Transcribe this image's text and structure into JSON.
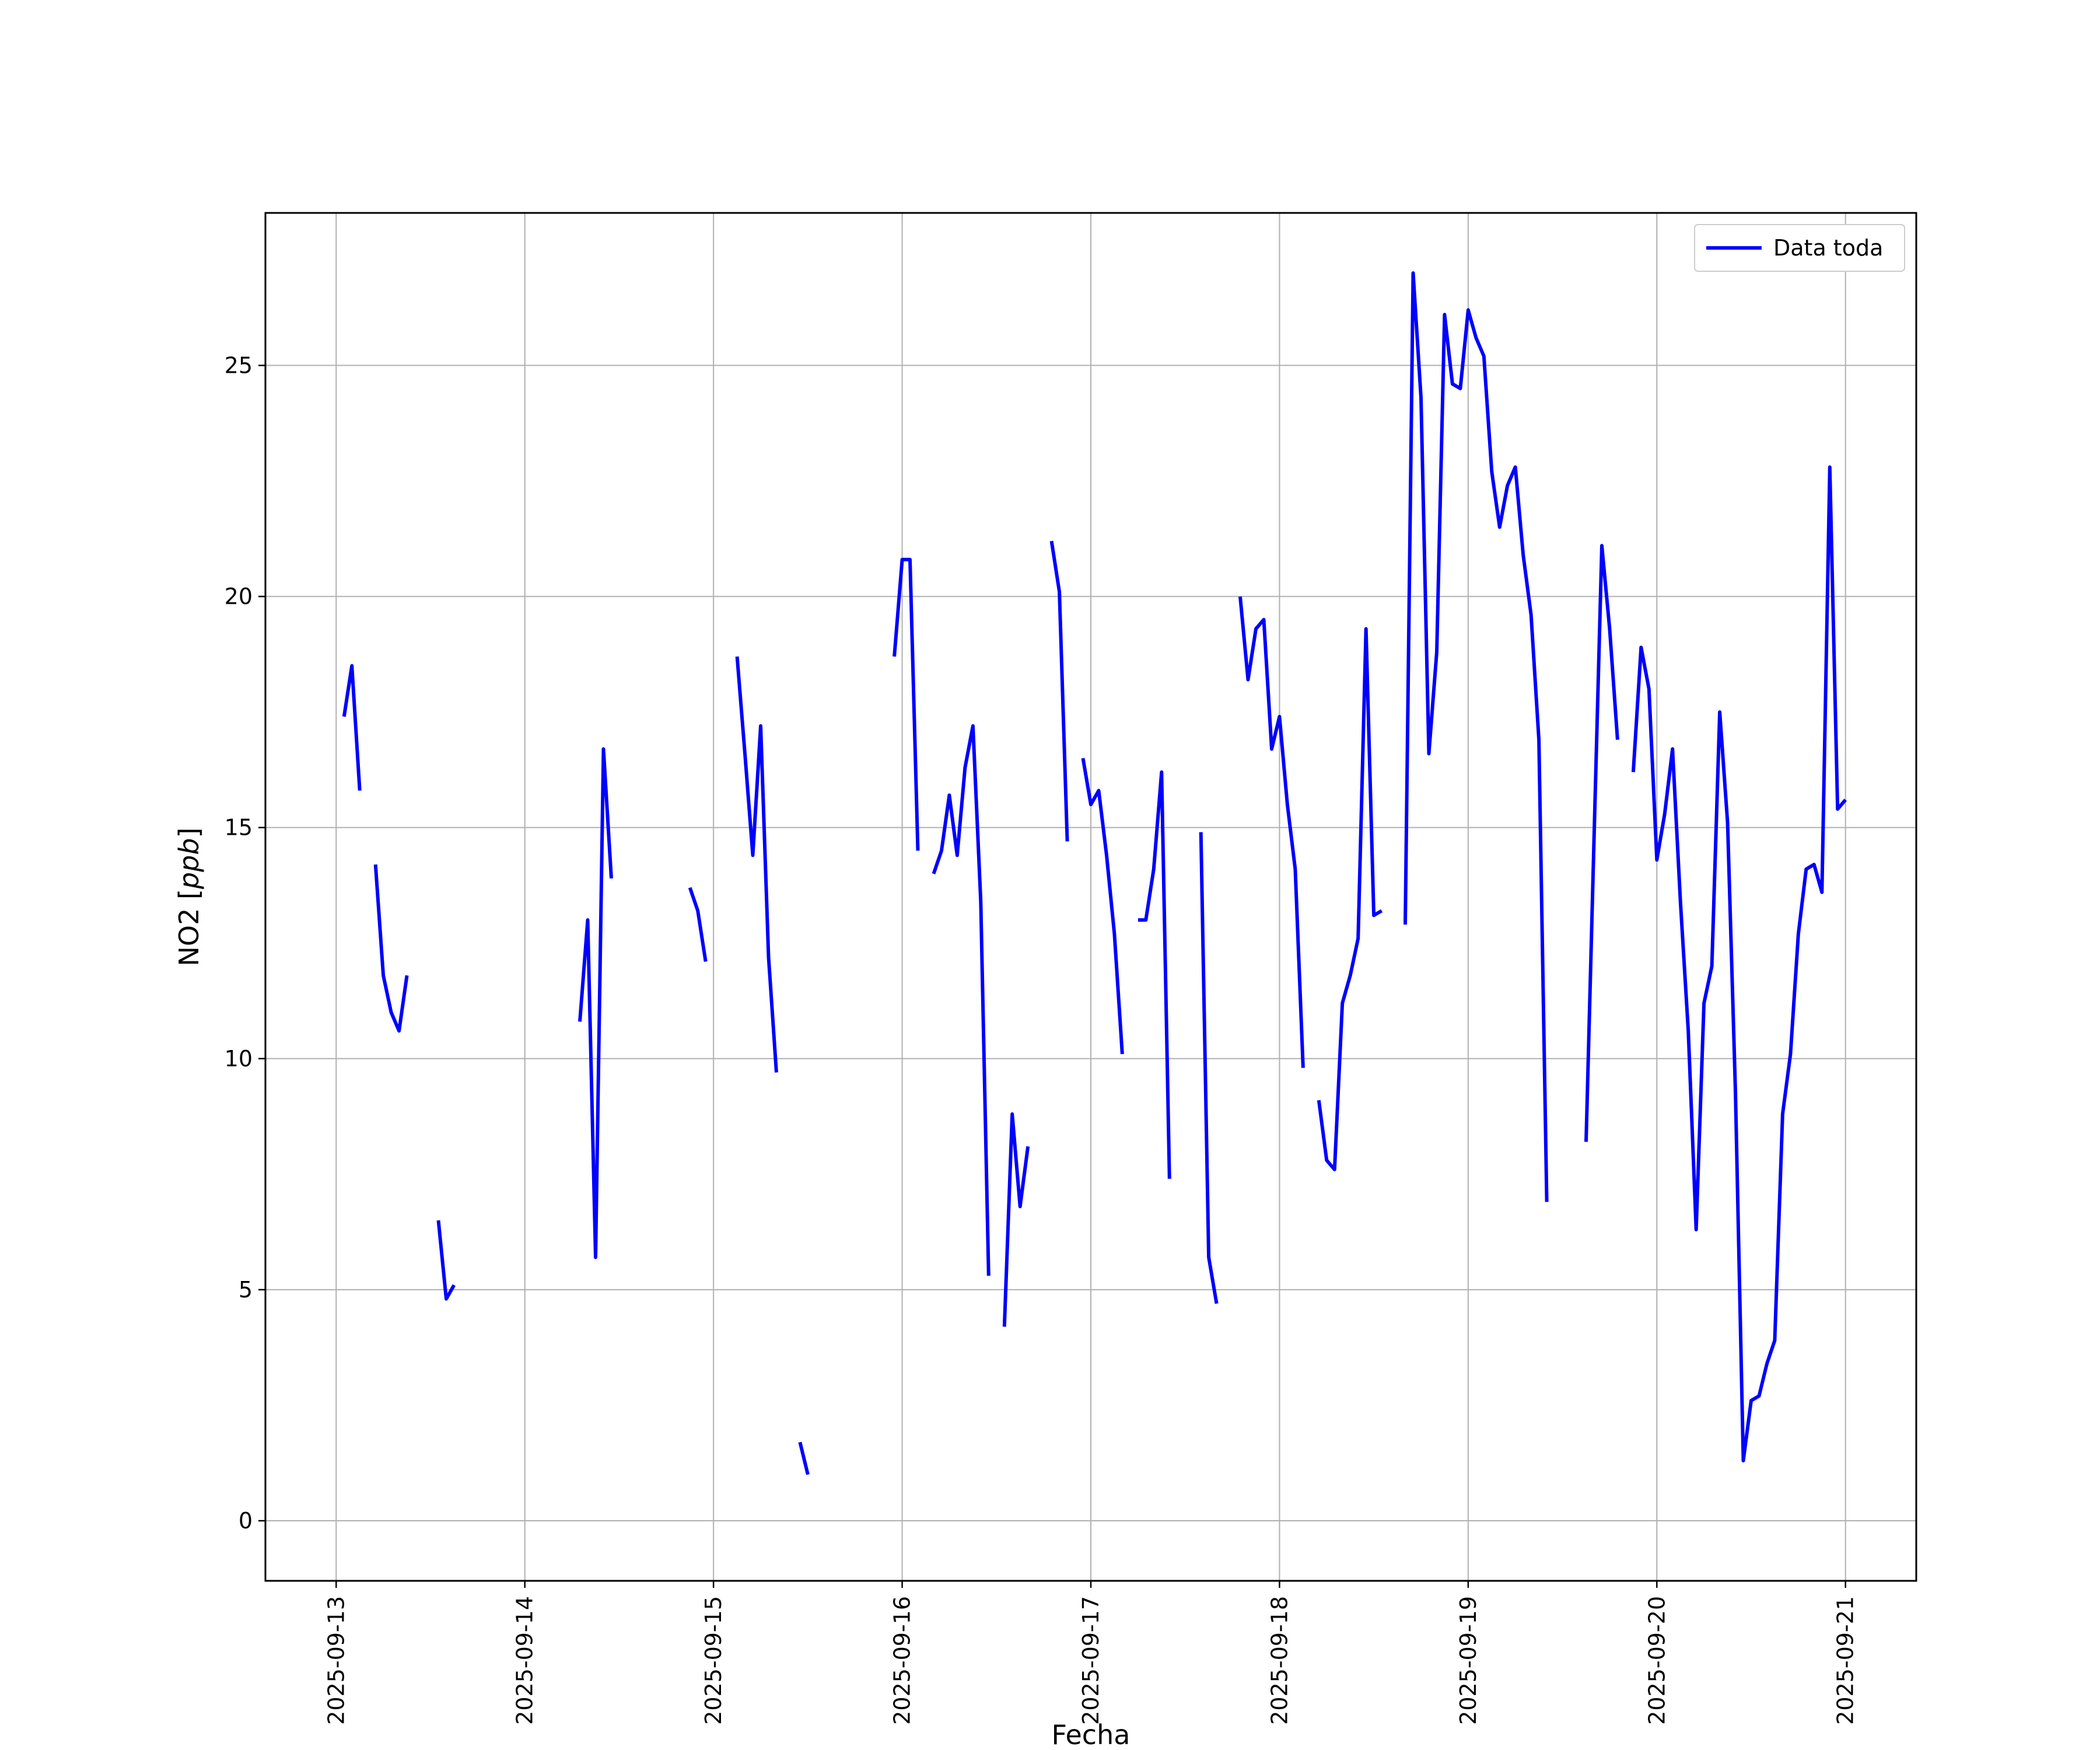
{
  "chart_data": {
    "type": "line",
    "xlabel": "Fecha",
    "ylabel": "NO2 [ppb]",
    "ylabel_parts": {
      "main": "NO2 [",
      "italic": "ppb",
      "close": "]"
    },
    "ylim": [
      -1.3,
      28.3
    ],
    "xlim": [
      "2025-09-12T15:00",
      "2025-09-21T09:00"
    ],
    "grid": true,
    "legend_position": "top-right",
    "yticks": [
      0,
      5,
      10,
      15,
      20,
      25
    ],
    "xticks": [
      "2025-09-13",
      "2025-09-14",
      "2025-09-15",
      "2025-09-16",
      "2025-09-17",
      "2025-09-18",
      "2025-09-19",
      "2025-09-20",
      "2025-09-21"
    ],
    "series": [
      {
        "name": "Data toda",
        "color": "#0000ff",
        "segments": [
          [
            [
              "2025-09-13T01:00",
              17.4
            ],
            [
              "2025-09-13T02:00",
              18.5
            ],
            [
              "2025-09-13T03:00",
              15.8
            ]
          ],
          [
            [
              "2025-09-13T05:00",
              14.2
            ],
            [
              "2025-09-13T06:00",
              11.8
            ],
            [
              "2025-09-13T07:00",
              11.0
            ],
            [
              "2025-09-13T08:00",
              10.6
            ],
            [
              "2025-09-13T09:00",
              11.8
            ]
          ],
          [
            [
              "2025-09-13T13:00",
              6.5
            ],
            [
              "2025-09-13T14:00",
              4.8
            ],
            [
              "2025-09-13T15:00",
              5.1
            ]
          ],
          [
            [
              "2025-09-14T07:00",
              10.8
            ],
            [
              "2025-09-14T08:00",
              13.0
            ],
            [
              "2025-09-14T09:00",
              5.7
            ],
            [
              "2025-09-14T10:00",
              16.7
            ],
            [
              "2025-09-14T11:00",
              13.9
            ]
          ],
          [
            [
              "2025-09-14T21:00",
              13.7
            ],
            [
              "2025-09-14T22:00",
              13.2
            ],
            [
              "2025-09-14T23:00",
              12.1
            ]
          ],
          [
            [
              "2025-09-15T03:00",
              18.7
            ],
            [
              "2025-09-15T04:00",
              16.6
            ],
            [
              "2025-09-15T05:00",
              14.4
            ],
            [
              "2025-09-15T06:00",
              17.2
            ],
            [
              "2025-09-15T07:00",
              12.2
            ],
            [
              "2025-09-15T08:00",
              9.7
            ]
          ],
          [
            [
              "2025-09-15T11:00",
              1.7
            ],
            [
              "2025-09-15T12:00",
              1.0
            ]
          ],
          [
            [
              "2025-09-15T23:00",
              18.7
            ],
            [
              "2025-09-16T00:00",
              20.8
            ],
            [
              "2025-09-16T01:00",
              20.8
            ],
            [
              "2025-09-16T02:00",
              14.5
            ]
          ],
          [
            [
              "2025-09-16T04:00",
              14.0
            ],
            [
              "2025-09-16T05:00",
              14.5
            ],
            [
              "2025-09-16T06:00",
              15.7
            ],
            [
              "2025-09-16T07:00",
              14.4
            ],
            [
              "2025-09-16T08:00",
              16.3
            ],
            [
              "2025-09-16T09:00",
              17.2
            ],
            [
              "2025-09-16T10:00",
              13.4
            ],
            [
              "2025-09-16T11:00",
              5.3
            ]
          ],
          [
            [
              "2025-09-16T13:00",
              4.2
            ],
            [
              "2025-09-16T14:00",
              8.8
            ],
            [
              "2025-09-16T15:00",
              6.8
            ],
            [
              "2025-09-16T16:00",
              8.1
            ]
          ],
          [
            [
              "2025-09-16T19:00",
              21.2
            ],
            [
              "2025-09-16T20:00",
              20.1
            ],
            [
              "2025-09-16T21:00",
              14.7
            ]
          ],
          [
            [
              "2025-09-16T23:00",
              16.5
            ],
            [
              "2025-09-17T00:00",
              15.5
            ],
            [
              "2025-09-17T01:00",
              15.8
            ],
            [
              "2025-09-17T02:00",
              14.4
            ],
            [
              "2025-09-17T03:00",
              12.7
            ],
            [
              "2025-09-17T04:00",
              10.1
            ]
          ],
          [
            [
              "2025-09-17T06:00",
              13.0
            ],
            [
              "2025-09-17T07:00",
              13.0
            ],
            [
              "2025-09-17T08:00",
              14.1
            ],
            [
              "2025-09-17T09:00",
              16.2
            ],
            [
              "2025-09-17T10:00",
              7.4
            ]
          ],
          [
            [
              "2025-09-17T14:00",
              14.9
            ],
            [
              "2025-09-17T15:00",
              5.7
            ],
            [
              "2025-09-17T16:00",
              4.7
            ]
          ],
          [
            [
              "2025-09-17T19:00",
              20.0
            ],
            [
              "2025-09-17T20:00",
              18.2
            ],
            [
              "2025-09-17T21:00",
              19.3
            ],
            [
              "2025-09-17T22:00",
              19.5
            ],
            [
              "2025-09-17T23:00",
              16.7
            ],
            [
              "2025-09-18T00:00",
              17.4
            ],
            [
              "2025-09-18T01:00",
              15.5
            ],
            [
              "2025-09-18T02:00",
              14.1
            ],
            [
              "2025-09-18T03:00",
              9.8
            ]
          ],
          [
            [
              "2025-09-18T05:00",
              9.1
            ],
            [
              "2025-09-18T06:00",
              7.8
            ],
            [
              "2025-09-18T07:00",
              7.6
            ],
            [
              "2025-09-18T08:00",
              11.2
            ],
            [
              "2025-09-18T09:00",
              11.8
            ],
            [
              "2025-09-18T10:00",
              12.6
            ],
            [
              "2025-09-18T11:00",
              19.3
            ],
            [
              "2025-09-18T12:00",
              13.1
            ],
            [
              "2025-09-18T13:00",
              13.2
            ]
          ],
          [
            [
              "2025-09-18T16:00",
              12.9
            ],
            [
              "2025-09-18T17:00",
              27.0
            ],
            [
              "2025-09-18T18:00",
              24.3
            ],
            [
              "2025-09-18T19:00",
              16.6
            ],
            [
              "2025-09-18T20:00",
              18.8
            ],
            [
              "2025-09-18T21:00",
              26.1
            ],
            [
              "2025-09-18T22:00",
              24.6
            ],
            [
              "2025-09-18T23:00",
              24.5
            ],
            [
              "2025-09-19T00:00",
              26.2
            ],
            [
              "2025-09-19T01:00",
              25.6
            ],
            [
              "2025-09-19T02:00",
              25.2
            ],
            [
              "2025-09-19T03:00",
              22.7
            ],
            [
              "2025-09-19T04:00",
              21.5
            ],
            [
              "2025-09-19T05:00",
              22.4
            ],
            [
              "2025-09-19T06:00",
              22.8
            ],
            [
              "2025-09-19T07:00",
              20.9
            ],
            [
              "2025-09-19T08:00",
              19.6
            ],
            [
              "2025-09-19T09:00",
              16.9
            ],
            [
              "2025-09-19T10:00",
              6.9
            ]
          ],
          [
            [
              "2025-09-19T15:00",
              8.2
            ],
            [
              "2025-09-19T16:00",
              14.7
            ],
            [
              "2025-09-19T17:00",
              21.1
            ],
            [
              "2025-09-19T18:00",
              19.3
            ],
            [
              "2025-09-19T19:00",
              16.9
            ]
          ],
          [
            [
              "2025-09-19T21:00",
              16.2
            ],
            [
              "2025-09-19T22:00",
              18.9
            ],
            [
              "2025-09-19T23:00",
              18.0
            ],
            [
              "2025-09-20T00:00",
              14.3
            ],
            [
              "2025-09-20T01:00",
              15.3
            ],
            [
              "2025-09-20T02:00",
              16.7
            ],
            [
              "2025-09-20T03:00",
              13.4
            ],
            [
              "2025-09-20T04:00",
              10.6
            ],
            [
              "2025-09-20T05:00",
              6.3
            ],
            [
              "2025-09-20T06:00",
              11.2
            ],
            [
              "2025-09-20T07:00",
              12.0
            ],
            [
              "2025-09-20T08:00",
              17.5
            ],
            [
              "2025-09-20T09:00",
              15.1
            ],
            [
              "2025-09-20T10:00",
              9.3
            ],
            [
              "2025-09-20T11:00",
              1.3
            ],
            [
              "2025-09-20T12:00",
              2.6
            ],
            [
              "2025-09-20T13:00",
              2.7
            ],
            [
              "2025-09-20T14:00",
              3.4
            ],
            [
              "2025-09-20T15:00",
              3.9
            ],
            [
              "2025-09-20T16:00",
              8.8
            ],
            [
              "2025-09-20T17:00",
              10.1
            ],
            [
              "2025-09-20T18:00",
              12.7
            ],
            [
              "2025-09-20T19:00",
              14.1
            ],
            [
              "2025-09-20T20:00",
              14.2
            ],
            [
              "2025-09-20T21:00",
              13.6
            ],
            [
              "2025-09-20T22:00",
              22.8
            ],
            [
              "2025-09-20T23:00",
              15.4
            ],
            [
              "2025-09-21T00:00",
              15.6
            ]
          ]
        ]
      }
    ]
  }
}
